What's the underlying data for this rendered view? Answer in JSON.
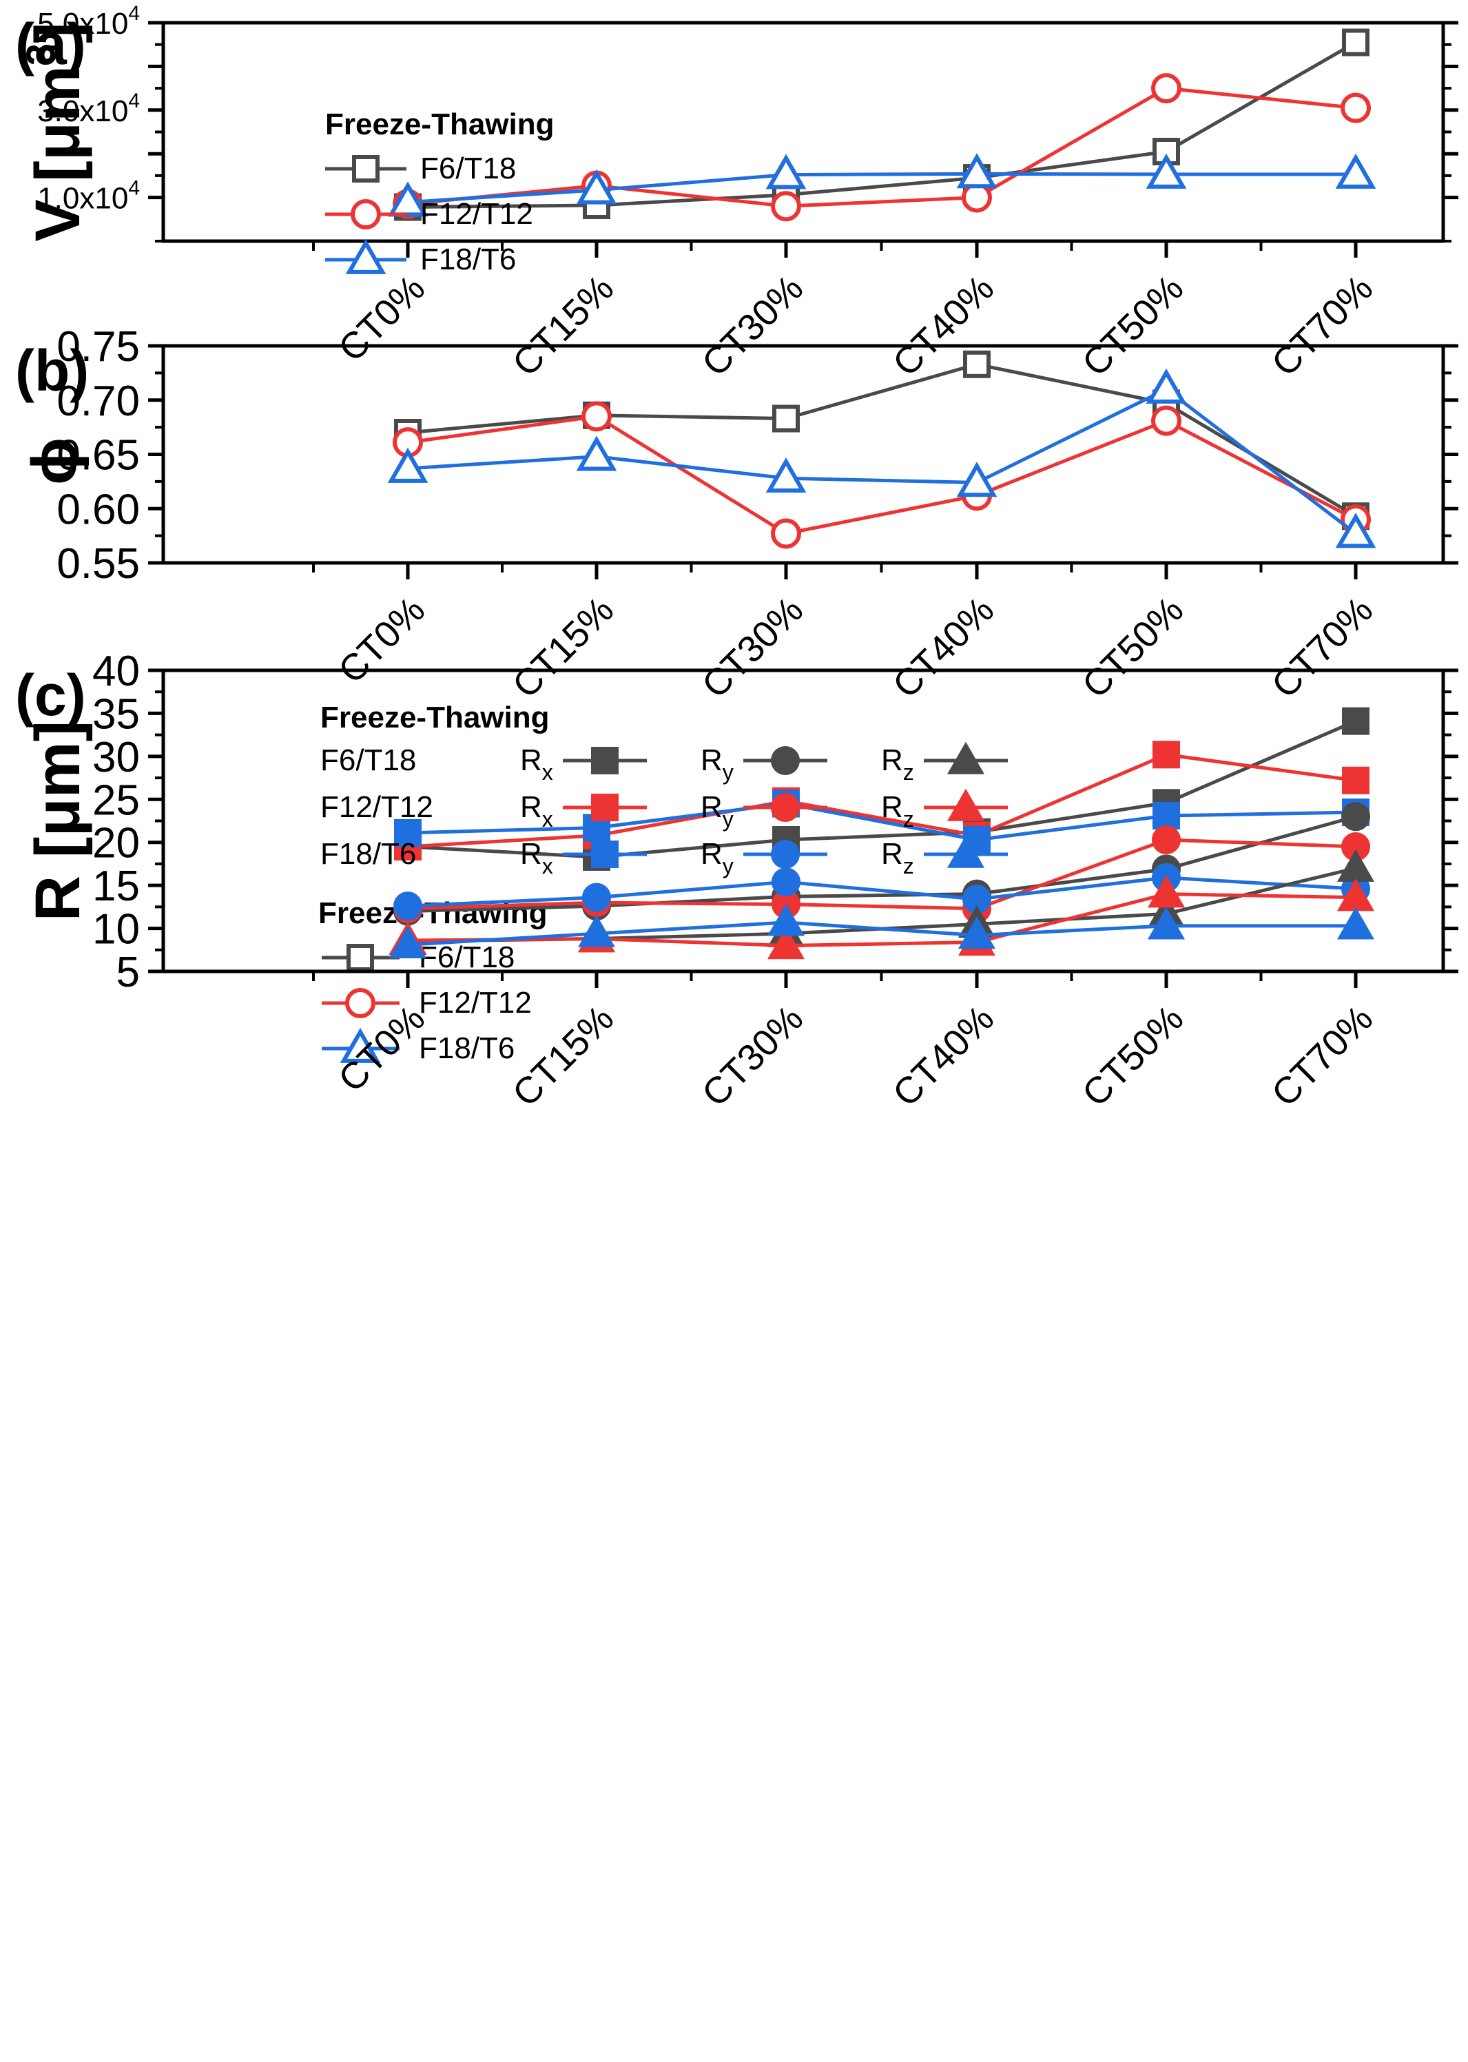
{
  "figure_colors": {
    "F6/T18": "#4a4a4a",
    "F12/T12": "#ee3333",
    "F18/T6": "#1f6fde"
  },
  "chart_data": [
    {
      "panel": "(a)",
      "type": "line",
      "ylabel_main": "V [",
      "ylabel_unit": "μm",
      "ylabel_sup": "3",
      "ylabel_close": "]",
      "xlabel": "",
      "categories": [
        "CT0%",
        "CT15%",
        "CT30%",
        "CT40%",
        "CT50%",
        "CT70%"
      ],
      "ylim": [
        0,
        50000
      ],
      "ytick_labels": [
        {
          "value": 10000,
          "mantissa": "1.0x10",
          "exp": "4"
        },
        {
          "value": 30000,
          "mantissa": "3.0x10",
          "exp": "4"
        },
        {
          "value": 50000,
          "mantissa": "5.0x10",
          "exp": "4"
        }
      ],
      "legend": {
        "title": "Freeze-Thawing",
        "position": "top-left"
      },
      "series": [
        {
          "name": "F6/T18",
          "marker": "square-open",
          "values": [
            7800,
            8200,
            10600,
            14500,
            20500,
            45500
          ]
        },
        {
          "name": "F12/T12",
          "marker": "circle-open",
          "values": [
            8500,
            12700,
            8000,
            10000,
            35000,
            30500
          ]
        },
        {
          "name": "F18/T6",
          "marker": "triangle-open",
          "values": [
            8900,
            11700,
            15200,
            15400,
            15300,
            15300
          ]
        }
      ]
    },
    {
      "panel": "(b)",
      "type": "line",
      "ylabel_main": "ϕ",
      "xlabel": "",
      "categories": [
        "CT0%",
        "CT15%",
        "CT30%",
        "CT40%",
        "CT50%",
        "CT70%"
      ],
      "ylim": [
        0.55,
        0.75
      ],
      "ytick_labels": [
        "0.55",
        "0.60",
        "0.65",
        "0.70",
        "0.75"
      ],
      "legend": {
        "title": "Freeze-Thawing",
        "position": "bottom-left"
      },
      "series": [
        {
          "name": "F6/T18",
          "marker": "square-open",
          "values": [
            0.67,
            0.686,
            0.683,
            0.733,
            0.697,
            0.593
          ]
        },
        {
          "name": "F12/T12",
          "marker": "circle-open",
          "values": [
            0.661,
            0.685,
            0.577,
            0.612,
            0.681,
            0.59
          ]
        },
        {
          "name": "F18/T6",
          "marker": "triangle-open",
          "values": [
            0.637,
            0.648,
            0.628,
            0.624,
            0.71,
            0.577
          ]
        }
      ]
    },
    {
      "panel": "(c)",
      "type": "line",
      "ylabel_main": "R [",
      "ylabel_unit": "μm",
      "ylabel_close": "]",
      "xlabel": "",
      "categories": [
        "CT0%",
        "CT15%",
        "CT30%",
        "CT40%",
        "CT50%",
        "CT70%"
      ],
      "ylim": [
        5,
        40
      ],
      "ytick_labels": [
        "5",
        "10",
        "15",
        "20",
        "25",
        "30",
        "35",
        "40"
      ],
      "legend": {
        "title": "Freeze-Thawing",
        "position": "top-left",
        "rows": [
          "F6/T18",
          "F12/T12",
          "F18/T6"
        ],
        "components": [
          {
            "base": "R",
            "sub": "x",
            "marker": "square"
          },
          {
            "base": "R",
            "sub": "y",
            "marker": "circle"
          },
          {
            "base": "R",
            "sub": "z",
            "marker": "triangle"
          }
        ]
      },
      "series": [
        {
          "name": "F6/T18 Rx",
          "group": "F6/T18",
          "marker": "square",
          "values": [
            19.5,
            18.3,
            20.3,
            21.2,
            24.6,
            34.1
          ]
        },
        {
          "name": "F12/T12 Rx",
          "group": "F12/T12",
          "marker": "square",
          "values": [
            19.5,
            20.8,
            24.8,
            20.8,
            30.2,
            27.2
          ]
        },
        {
          "name": "F18/T6 Rx",
          "group": "F18/T6",
          "marker": "square",
          "values": [
            21.1,
            21.7,
            24.5,
            20.3,
            23.1,
            23.5
          ]
        },
        {
          "name": "F6/T18 Ry",
          "group": "F6/T18",
          "marker": "circle",
          "values": [
            12.0,
            12.6,
            13.7,
            14.0,
            16.9,
            23.0
          ]
        },
        {
          "name": "F12/T12 Ry",
          "group": "F12/T12",
          "marker": "circle",
          "values": [
            12.3,
            13.0,
            12.8,
            12.3,
            20.3,
            19.5
          ]
        },
        {
          "name": "F18/T6 Ry",
          "group": "F18/T6",
          "marker": "circle",
          "values": [
            12.6,
            13.6,
            15.4,
            13.4,
            15.9,
            14.6
          ]
        },
        {
          "name": "F6/T18 Rz",
          "group": "F6/T18",
          "marker": "triangle",
          "values": [
            8.5,
            8.8,
            9.4,
            10.5,
            11.7,
            17.0
          ]
        },
        {
          "name": "F12/T12 Rz",
          "group": "F12/T12",
          "marker": "triangle",
          "values": [
            8.6,
            8.8,
            8.0,
            8.4,
            14.0,
            13.6
          ]
        },
        {
          "name": "F18/T6 Rz",
          "group": "F18/T6",
          "marker": "triangle",
          "values": [
            8.1,
            9.4,
            10.7,
            9.2,
            10.3,
            10.3
          ]
        }
      ]
    }
  ]
}
